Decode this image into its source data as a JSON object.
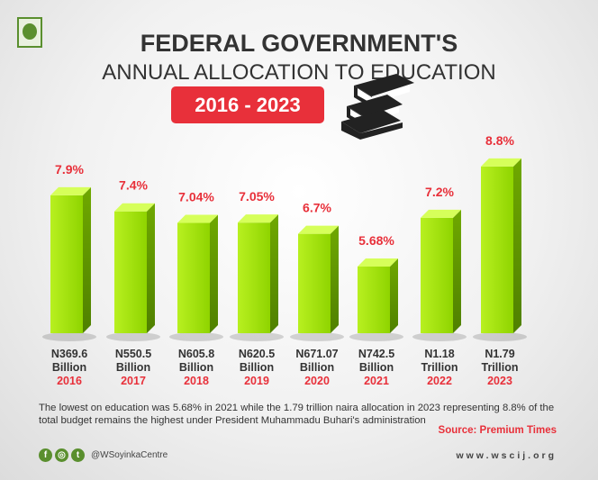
{
  "header": {
    "title": "FEDERAL GOVERNMENT'S",
    "subtitle": "ANNUAL ALLOCATION TO EDUCATION",
    "range": "2016 - 2023"
  },
  "chart_data": {
    "type": "bar",
    "title": "Federal Government's Annual Allocation to Education 2016 - 2023",
    "categories": [
      "2016",
      "2017",
      "2018",
      "2019",
      "2020",
      "2021",
      "2022",
      "2023"
    ],
    "values": [
      7.9,
      7.4,
      7.04,
      7.05,
      6.7,
      5.68,
      7.2,
      8.8
    ],
    "value_labels": [
      "7.9%",
      "7.4%",
      "7.04%",
      "7.05%",
      "6.7%",
      "5.68%",
      "7.2%",
      "8.8%"
    ],
    "amounts": [
      "N369.6",
      "N550.5",
      "N605.8",
      "N620.5",
      "N671.07",
      "N742.5",
      "N1.18",
      "N1.79"
    ],
    "units": [
      "Billion",
      "Billion",
      "Billion",
      "Billion",
      "Billion",
      "Billion",
      "Trillion",
      "Trillion"
    ],
    "colors": {
      "bar": "#9be000",
      "label": "#e8303a"
    }
  },
  "footer": {
    "note": "The lowest on education was 5.68% in 2021 while the 1.79 trillion naira allocation in 2023 representing 8.8% of the total budget remains the highest under President Muhammadu Buhari's administration",
    "source": "Source: Premium Times",
    "handle": "@WSoyinkaCentre",
    "website": "www.wscij.org",
    "social_icons": [
      "facebook-icon",
      "instagram-icon",
      "twitter-icon"
    ]
  }
}
